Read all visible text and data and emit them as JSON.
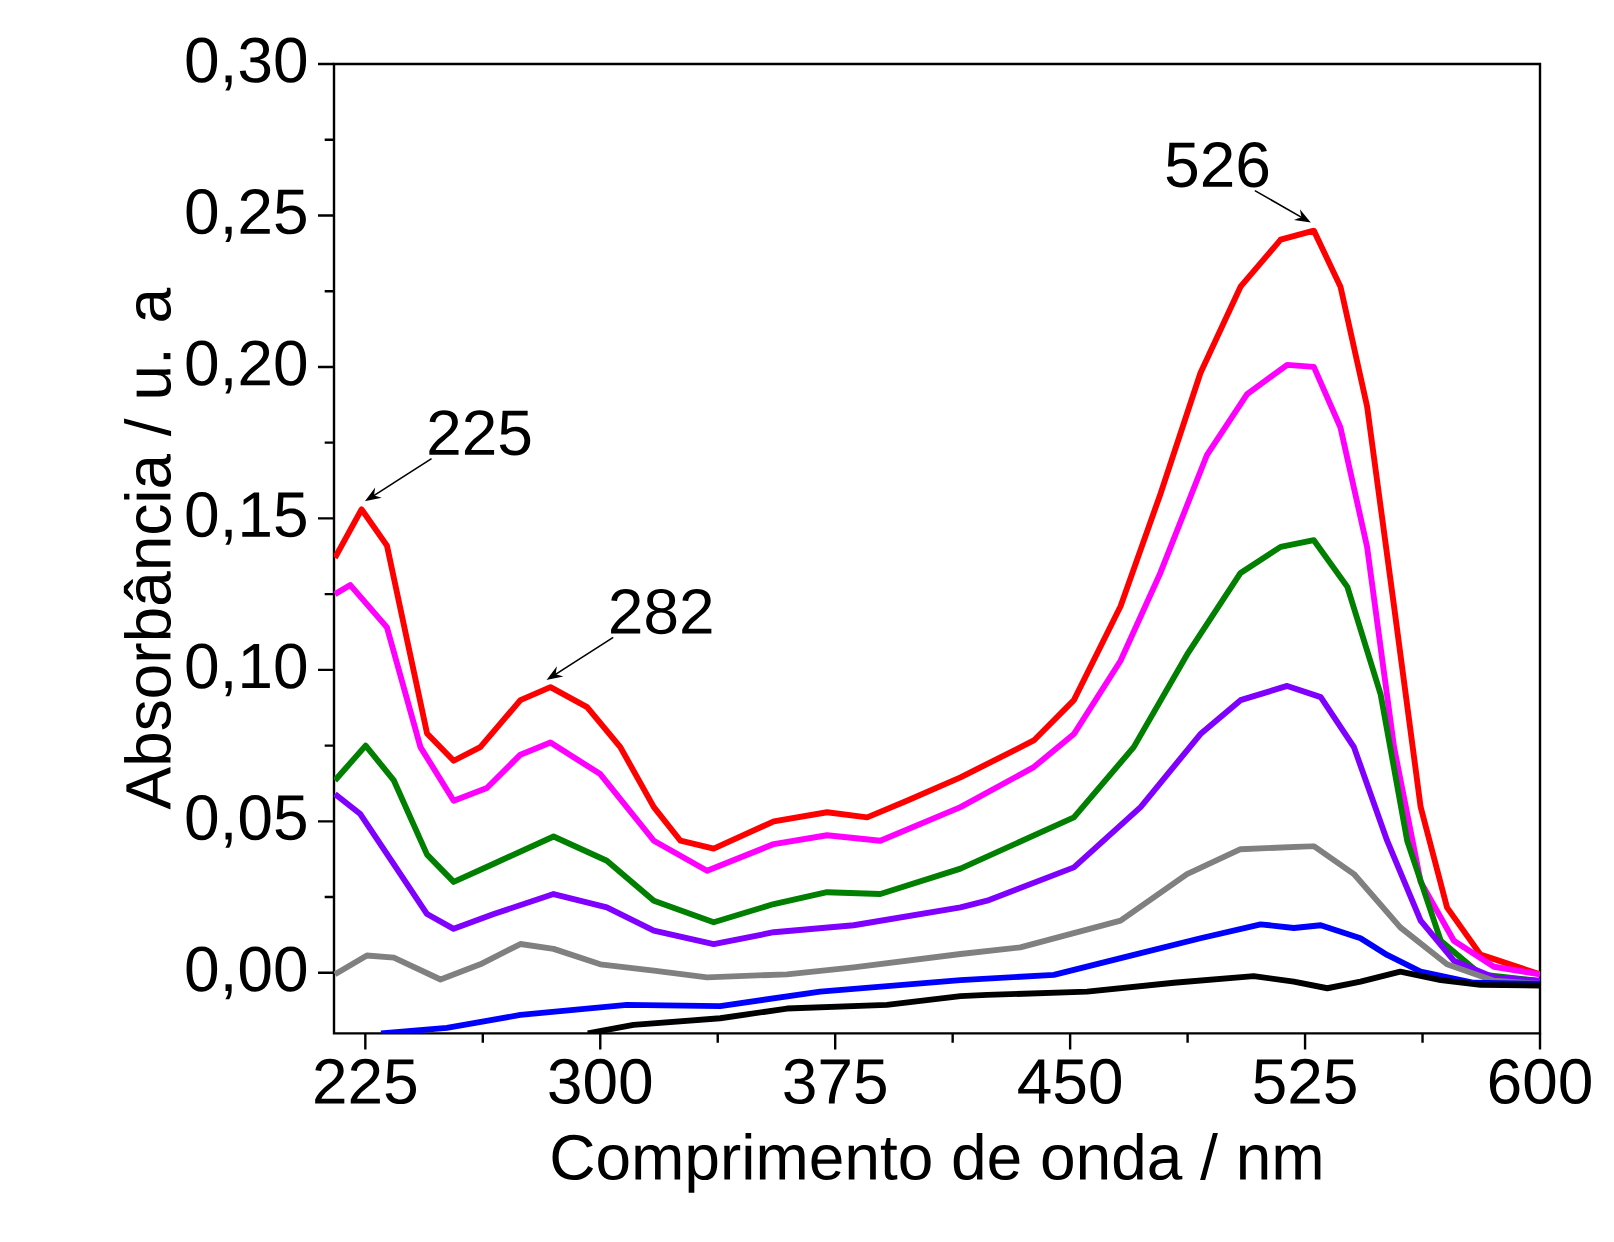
{
  "chart_data": {
    "type": "line",
    "xlabel": "Comprimento de onda / nm",
    "ylabel": "Absorbância / u. a",
    "xlim": [
      215,
      600
    ],
    "ylim": [
      -0.02,
      0.3
    ],
    "xticks": [
      225,
      300,
      375,
      450,
      525,
      600
    ],
    "yticks": [
      {
        "value": 0,
        "label": "0,00"
      },
      {
        "value": 0.05,
        "label": "0,05"
      },
      {
        "value": 0.1,
        "label": "0,10"
      },
      {
        "value": 0.15,
        "label": "0,15"
      },
      {
        "value": 0.2,
        "label": "0,20"
      },
      {
        "value": 0.25,
        "label": "0,25"
      },
      {
        "value": 0.3,
        "label": "0,30"
      }
    ],
    "line_style": "solid",
    "annotations": [
      {
        "text": "225",
        "x": 224,
        "y": 0.153
      },
      {
        "text": "282",
        "x": 282,
        "y": 0.094
      },
      {
        "text": "526",
        "x": 526,
        "y": 0.245
      }
    ],
    "series": [
      {
        "color": "#ff0000",
        "x": [
          215.3,
          223.8,
          231.9,
          238.3,
          244.7,
          253.2,
          261.7,
          274.5,
          284.1,
          295.8,
          306.4,
          317.1,
          325.6,
          336.2,
          355.4,
          372.4,
          385.2,
          397.9,
          415,
          438.4,
          451.2,
          466.1,
          478.8,
          491.6,
          504.4,
          517.2,
          527.8,
          536.3,
          544.8,
          553.4,
          561.9,
          570.3,
          581,
          600
        ],
        "values": [
          0.137,
          0.153,
          0.141,
          0.11,
          0.079,
          0.07,
          0.0745,
          0.09,
          0.0943,
          0.0877,
          0.0745,
          0.0547,
          0.0436,
          0.041,
          0.05,
          0.053,
          0.0513,
          0.0568,
          0.0645,
          0.0767,
          0.09,
          0.121,
          0.158,
          0.198,
          0.2265,
          0.242,
          0.245,
          0.2265,
          0.187,
          0.121,
          0.0547,
          0.0216,
          0.006,
          -0.0005
        ]
      },
      {
        "color": "#ff00ff",
        "x": [
          215.3,
          220.2,
          231.9,
          242.6,
          253.2,
          263.8,
          274.5,
          284.1,
          300,
          317.1,
          334.1,
          355.4,
          372.4,
          389.4,
          415,
          438.4,
          451.2,
          466.1,
          478.8,
          493.7,
          506.5,
          519.3,
          527.8,
          536.3,
          544.8,
          553.4,
          561.9,
          572.5,
          585.3,
          600
        ],
        "values": [
          0.125,
          0.128,
          0.114,
          0.0745,
          0.0568,
          0.061,
          0.072,
          0.076,
          0.0656,
          0.0436,
          0.0337,
          0.0425,
          0.0454,
          0.0436,
          0.0547,
          0.0679,
          0.0788,
          0.103,
          0.132,
          0.171,
          0.191,
          0.2007,
          0.2,
          0.18,
          0.1406,
          0.0745,
          0.03,
          0.0106,
          0.002,
          -0.0005
        ]
      },
      {
        "color": "#007f00",
        "x": [
          215.3,
          225.1,
          234.1,
          244.7,
          253.2,
          266,
          285.1,
          302.1,
          317.1,
          336.2,
          355.4,
          372.4,
          389.4,
          415,
          451.2,
          470.3,
          487.3,
          504.4,
          517.2,
          527.8,
          538.5,
          549.1,
          557.6,
          568.3,
          581,
          600
        ],
        "values": [
          0.0635,
          0.075,
          0.0635,
          0.039,
          0.03,
          0.036,
          0.045,
          0.037,
          0.0238,
          0.0167,
          0.0227,
          0.0266,
          0.026,
          0.0344,
          0.0513,
          0.0745,
          0.105,
          0.132,
          0.1406,
          0.1428,
          0.1274,
          0.092,
          0.0436,
          0.0106,
          -0.0005,
          -0.0027
        ]
      },
      {
        "color": "#7f00ff",
        "x": [
          215.3,
          223.4,
          236.2,
          244.7,
          253.2,
          266,
          285.1,
          302.1,
          317.1,
          336.2,
          355.4,
          380.9,
          415,
          423.5,
          451.2,
          472.5,
          491.6,
          504.4,
          519.3,
          530,
          540.6,
          551.2,
          561.9,
          572.5,
          585.3,
          600
        ],
        "values": [
          0.059,
          0.0524,
          0.0326,
          0.0194,
          0.0145,
          0.0194,
          0.026,
          0.0216,
          0.0139,
          0.0095,
          0.0134,
          0.0157,
          0.0216,
          0.0238,
          0.0348,
          0.0547,
          0.0788,
          0.09,
          0.0947,
          0.091,
          0.0745,
          0.0436,
          0.0172,
          0.004,
          -0.0015,
          -0.0027
        ]
      },
      {
        "color": "#808080",
        "x": [
          215.3,
          225.5,
          234.1,
          249,
          261.7,
          274.5,
          285.1,
          300,
          317.1,
          334.1,
          359.6,
          380.9,
          415,
          434.1,
          466.1,
          487.3,
          504.4,
          527.8,
          540.6,
          555.4,
          570.3,
          585.3,
          600
        ],
        "values": [
          -0.0005,
          0.0057,
          0.005,
          -0.0022,
          0.0028,
          0.0095,
          0.0079,
          0.0028,
          0.0007,
          -0.0015,
          -0.0005,
          0.0018,
          0.0062,
          0.0084,
          0.0172,
          0.0326,
          0.0408,
          0.0418,
          0.0326,
          0.015,
          0.0028,
          -0.0026,
          -0.0037
        ]
      },
      {
        "color": "#0000ff",
        "x": [
          230,
          251,
          274.5,
          308.5,
          338.3,
          370.2,
          415,
          444.8,
          470.3,
          491.6,
          510.8,
          521.4,
          530,
          542.7,
          551.2,
          561.9,
          578.9,
          600
        ],
        "values": [
          -0.02,
          -0.0182,
          -0.0139,
          -0.0106,
          -0.011,
          -0.0062,
          -0.0024,
          -0.0007,
          0.0059,
          0.0114,
          0.016,
          0.0148,
          0.0157,
          0.0114,
          0.0059,
          0.0004,
          -0.0033,
          -0.0037
        ]
      },
      {
        "color": "#000000",
        "x": [
          296,
          310.6,
          338.3,
          359.6,
          391.5,
          415,
          423.5,
          455.4,
          483.1,
          508.6,
          521.4,
          532.1,
          542.7,
          555.4,
          568.3,
          581,
          600
        ],
        "values": [
          -0.02,
          -0.0172,
          -0.015,
          -0.0118,
          -0.0106,
          -0.0077,
          -0.0073,
          -0.0062,
          -0.0033,
          -0.0011,
          -0.0029,
          -0.0051,
          -0.0029,
          0.0004,
          -0.0024,
          -0.004,
          -0.0042
        ]
      }
    ]
  }
}
